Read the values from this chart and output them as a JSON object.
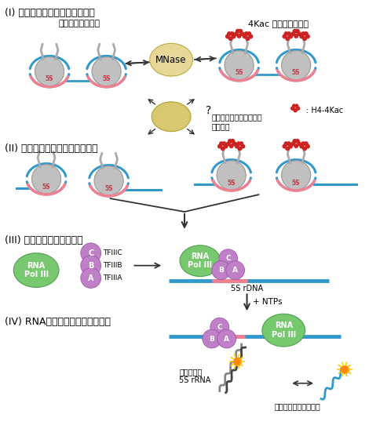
{
  "title_I": "(I) クロマチンアクセシビリティ",
  "title_II": "(II) 転写可能なクロマチンの形成",
  "title_III": "(III) 転写前のプライミング",
  "title_IV": "(IV) RNAポリメラーゼによる転写",
  "label_unmod": "無修飾クロマチン",
  "label_4kac": "4Kac 修飾クロマチン",
  "label_mnase": "MNase",
  "label_remodeling_line1": "クロマチンリモデリング",
  "label_remodeling_line2": "因子など",
  "label_question": "?",
  "label_h4kac": ": H4-4Kac",
  "label_5S": "5S",
  "label_5S_rdna": "5S rDNA",
  "label_ntps": "+ NTPs",
  "label_tfiiic": "TFIIIC",
  "label_tfiiib": "TFIIIB",
  "label_tfiiia": "TFIIIA",
  "label_rnapol": "RNA\nPol III",
  "label_transcribed_line1": "転写された",
  "label_transcribed_line2": "5S rRNA",
  "label_antisense": "アンチセンスプローブ",
  "label_A": "A",
  "label_B": "B",
  "label_C": "C",
  "color_background": "#ffffff",
  "color_nucleosome": "#c0c0c0",
  "color_dna_blue": "#3399cc",
  "color_dna_pink": "#f08090",
  "color_mnase": "#e8d898",
  "color_remodeling": "#d8c870",
  "color_h4kac": "#cc2222",
  "color_rnapol_green": "#78c870",
  "color_tf_purple": "#c080c8",
  "color_arrow": "#333333",
  "color_orange_dot": "#ff8800",
  "color_gray_strand": "#888888",
  "color_dark_strand": "#444444"
}
